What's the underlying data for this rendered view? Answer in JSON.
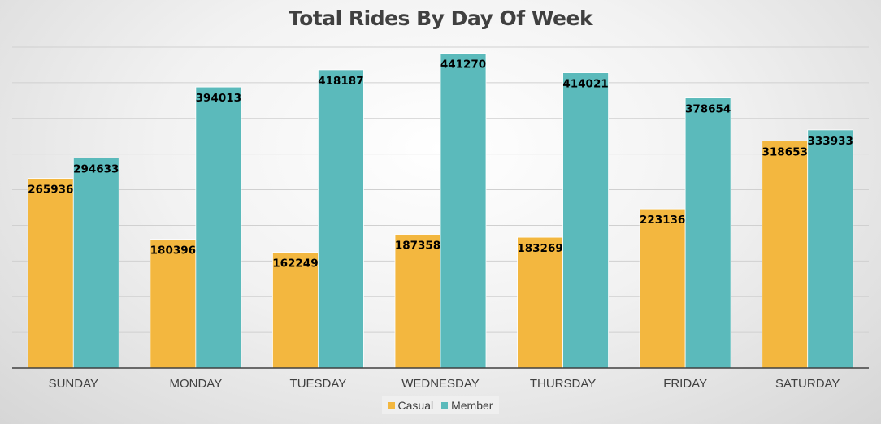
{
  "chart_data": {
    "type": "bar",
    "title": "Total Rides By Day Of Week",
    "categories": [
      "SUNDAY",
      "MONDAY",
      "TUESDAY",
      "WEDNESDAY",
      "THURSDAY",
      "FRIDAY",
      "SATURDAY"
    ],
    "series": [
      {
        "name": "Casual",
        "color": "#F3B73F",
        "values": [
          265936,
          180396,
          162249,
          187358,
          183269,
          223136,
          318653
        ]
      },
      {
        "name": "Member",
        "color": "#5BBABB",
        "values": [
          294633,
          394013,
          418187,
          441270,
          414021,
          378654,
          333933
        ]
      }
    ],
    "ylim": [
      0,
      450000
    ],
    "ytick_step": 50000,
    "grid": true,
    "legend_position": "bottom",
    "data_labels": true
  }
}
